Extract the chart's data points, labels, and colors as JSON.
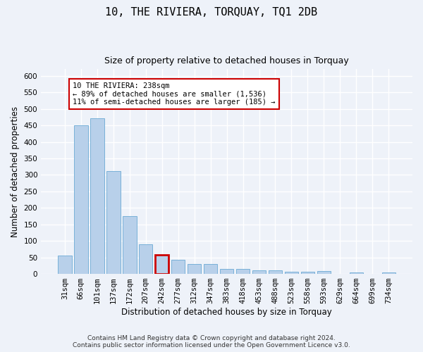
{
  "title": "10, THE RIVIERA, TORQUAY, TQ1 2DB",
  "subtitle": "Size of property relative to detached houses in Torquay",
  "xlabel": "Distribution of detached houses by size in Torquay",
  "ylabel": "Number of detached properties",
  "categories": [
    "31sqm",
    "66sqm",
    "101sqm",
    "137sqm",
    "172sqm",
    "207sqm",
    "242sqm",
    "277sqm",
    "312sqm",
    "347sqm",
    "383sqm",
    "418sqm",
    "453sqm",
    "488sqm",
    "523sqm",
    "558sqm",
    "593sqm",
    "629sqm",
    "664sqm",
    "699sqm",
    "734sqm"
  ],
  "values": [
    55,
    450,
    472,
    311,
    176,
    90,
    58,
    43,
    30,
    31,
    15,
    15,
    10,
    10,
    6,
    6,
    8,
    1,
    4,
    1,
    4
  ],
  "bar_color": "#b8d0ea",
  "bar_edge_color": "#6aaad4",
  "highlight_index": 6,
  "highlight_edge_color": "#cc0000",
  "annotation_text": "10 THE RIVIERA: 238sqm\n← 89% of detached houses are smaller (1,536)\n11% of semi-detached houses are larger (185) →",
  "annotation_box_color": "#ffffff",
  "annotation_box_edge": "#cc0000",
  "ylim": [
    0,
    620
  ],
  "yticks": [
    0,
    50,
    100,
    150,
    200,
    250,
    300,
    350,
    400,
    450,
    500,
    550,
    600
  ],
  "footer_line1": "Contains HM Land Registry data © Crown copyright and database right 2024.",
  "footer_line2": "Contains public sector information licensed under the Open Government Licence v3.0.",
  "background_color": "#eef2f9",
  "grid_color": "#ffffff",
  "title_fontsize": 11,
  "subtitle_fontsize": 9,
  "axis_label_fontsize": 8.5,
  "tick_fontsize": 7.5,
  "annotation_fontsize": 7.5,
  "footer_fontsize": 6.5
}
